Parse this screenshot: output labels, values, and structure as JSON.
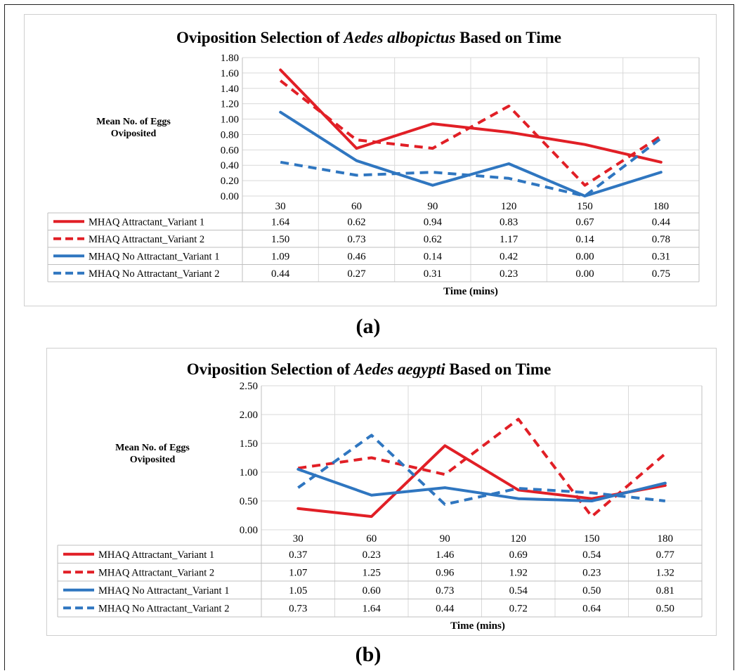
{
  "colors": {
    "red": "#e11f26",
    "blue": "#2f76c0",
    "grid": "#d9d9d9",
    "table": "#bfbfbf"
  },
  "captions": [
    "(a)",
    "(b)"
  ],
  "chart_data": [
    {
      "type": "line",
      "title_prefix": "Oviposition Selection of ",
      "title_italic": "Aedes albopictus",
      "title_suffix": "  Based on Time",
      "ylabel": [
        "Mean No. of  Eggs",
        "Oviposited"
      ],
      "xlabel": "Time (mins)",
      "categories": [
        "30",
        "60",
        "90",
        "120",
        "150",
        "180"
      ],
      "yticks": [
        "0.00",
        "0.20",
        "0.40",
        "0.60",
        "0.80",
        "1.00",
        "1.20",
        "1.40",
        "1.60",
        "1.80"
      ],
      "ylim": [
        0,
        1.8
      ],
      "grid": true,
      "series": [
        {
          "name": "MHAQ Attractant_Variant 1",
          "color": "red",
          "dash": false,
          "values": [
            1.64,
            0.62,
            0.94,
            0.83,
            0.67,
            0.44
          ],
          "labels": [
            "1.64",
            "0.62",
            "0.94",
            "0.83",
            "0.67",
            "0.44"
          ]
        },
        {
          "name": "MHAQ  Attractant_Variant 2",
          "color": "red",
          "dash": true,
          "values": [
            1.5,
            0.73,
            0.62,
            1.17,
            0.14,
            0.78
          ],
          "labels": [
            "1.50",
            "0.73",
            "0.62",
            "1.17",
            "0.14",
            "0.78"
          ]
        },
        {
          "name": "MHAQ No Attractant_Variant 1",
          "color": "blue",
          "dash": false,
          "values": [
            1.09,
            0.46,
            0.14,
            0.42,
            0.0,
            0.31
          ],
          "labels": [
            "1.09",
            "0.46",
            "0.14",
            "0.42",
            "0.00",
            "0.31"
          ]
        },
        {
          "name": "MHAQ No Attractant_Variant 2",
          "color": "blue",
          "dash": true,
          "values": [
            0.44,
            0.27,
            0.31,
            0.23,
            0.0,
            0.75
          ],
          "labels": [
            "0.44",
            "0.27",
            "0.31",
            "0.23",
            "0.00",
            "0.75"
          ]
        }
      ]
    },
    {
      "type": "line",
      "title_prefix": "Oviposition Selection of ",
      "title_italic": "Aedes aegypti",
      "title_suffix": "  Based on Time",
      "ylabel": [
        "Mean No. of Eggs",
        "Oviposited"
      ],
      "xlabel": "Time (mins)",
      "categories": [
        "30",
        "60",
        "90",
        "120",
        "150",
        "180"
      ],
      "yticks": [
        "0.00",
        "0.50",
        "1.00",
        "1.50",
        "2.00",
        "2.50"
      ],
      "ylim": [
        0,
        2.5
      ],
      "grid": true,
      "series": [
        {
          "name": "MHAQ Attractant_Variant 1",
          "color": "red",
          "dash": false,
          "values": [
            0.37,
            0.23,
            1.46,
            0.69,
            0.54,
            0.77
          ],
          "labels": [
            "0.37",
            "0.23",
            "1.46",
            "0.69",
            "0.54",
            "0.77"
          ]
        },
        {
          "name": "MHAQ  Attractant_Variant 2",
          "color": "red",
          "dash": true,
          "values": [
            1.07,
            1.25,
            0.96,
            1.92,
            0.23,
            1.32
          ],
          "labels": [
            "1.07",
            "1.25",
            "0.96",
            "1.92",
            "0.23",
            "1.32"
          ]
        },
        {
          "name": "MHAQ No Attractant_Variant 1",
          "color": "blue",
          "dash": false,
          "values": [
            1.05,
            0.6,
            0.73,
            0.54,
            0.5,
            0.81
          ],
          "labels": [
            "1.05",
            "0.60",
            "0.73",
            "0.54",
            "0.50",
            "0.81"
          ]
        },
        {
          "name": "MHAQ No Attractant_Variant 2",
          "color": "blue",
          "dash": true,
          "values": [
            0.73,
            1.64,
            0.44,
            0.72,
            0.64,
            0.5
          ],
          "labels": [
            "0.73",
            "1.64",
            "0.44",
            "0.72",
            "0.64",
            "0.50"
          ]
        }
      ]
    }
  ]
}
